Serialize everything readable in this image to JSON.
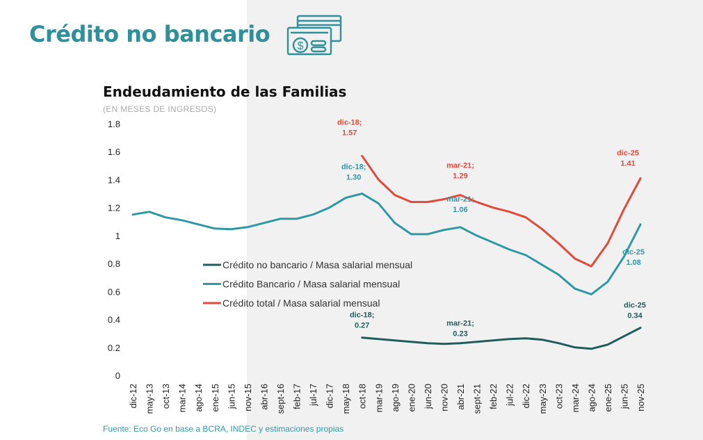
{
  "header": {
    "title": "Crédito no bancario",
    "icon": "credit-card-dollar-icon"
  },
  "source": "Fuente: Eco Go en base a BCRA, INDEC y estimaciones propias",
  "colors": {
    "accent": "#2f8f9a",
    "no_bancario": "#1f5c5e",
    "bancario": "#2e98a4",
    "total": "#e04a3a",
    "background_right": "#f1f1f1"
  },
  "chart_data": {
    "type": "line",
    "title": "Endeudamiento de las Familias",
    "subtitle": "(EN MESES DE INGRESOS)",
    "ylim": [
      0,
      1.8
    ],
    "yticks": [
      "0",
      "0.2",
      "0.4",
      "0.6",
      "0.8",
      "1",
      "1.2",
      "1.4",
      "1.6",
      "1.8"
    ],
    "categories": [
      "dic-12",
      "may-13",
      "oct-13",
      "mar-14",
      "ago-14",
      "ene-15",
      "jun-15",
      "nov-15",
      "abr-16",
      "sept-16",
      "feb-17",
      "jul-17",
      "dic-17",
      "may-18",
      "oct-18",
      "mar-19",
      "ago-19",
      "ene-20",
      "jun-20",
      "nov-20",
      "abr-21",
      "sept-21",
      "feb-22",
      "jul-22",
      "dic-22",
      "may-23",
      "oct-23",
      "mar-24",
      "ago-24",
      "ene-25",
      "jun-25",
      "nov-25"
    ],
    "grid": false,
    "legend_position": "center-left",
    "series": [
      {
        "name": "Crédito no bancario / Masa salarial mensual",
        "color": "#1f5c5e",
        "values": [
          null,
          null,
          null,
          null,
          null,
          null,
          null,
          null,
          null,
          null,
          null,
          null,
          null,
          null,
          0.27,
          0.26,
          0.25,
          0.24,
          0.23,
          0.225,
          0.23,
          0.24,
          0.25,
          0.26,
          0.265,
          0.255,
          0.23,
          0.2,
          0.19,
          0.22,
          0.28,
          0.34
        ]
      },
      {
        "name": "Crédito Bancario / Masa salarial mensual",
        "color": "#2e98a4",
        "values": [
          1.15,
          1.17,
          1.13,
          1.11,
          1.08,
          1.05,
          1.045,
          1.06,
          1.09,
          1.12,
          1.12,
          1.15,
          1.2,
          1.27,
          1.3,
          1.23,
          1.09,
          1.01,
          1.01,
          1.04,
          1.06,
          1.0,
          0.95,
          0.9,
          0.86,
          0.79,
          0.72,
          0.62,
          0.58,
          0.67,
          0.85,
          1.08
        ]
      },
      {
        "name": "Crédito total / Masa salarial mensual",
        "color": "#e04a3a",
        "values": [
          null,
          null,
          null,
          null,
          null,
          null,
          null,
          null,
          null,
          null,
          null,
          null,
          null,
          null,
          1.57,
          1.4,
          1.29,
          1.24,
          1.24,
          1.26,
          1.29,
          1.24,
          1.2,
          1.17,
          1.13,
          1.045,
          0.945,
          0.835,
          0.78,
          0.945,
          1.19,
          1.41
        ]
      }
    ],
    "annotations": [
      {
        "series": 2,
        "at": "oct-18",
        "lines": [
          "dic-18;",
          "1.57"
        ]
      },
      {
        "series": 1,
        "at": "oct-18",
        "lines": [
          "dic-18;",
          "1.30"
        ]
      },
      {
        "series": 2,
        "at": "abr-21",
        "lines": [
          "mar-21;",
          "1.29"
        ]
      },
      {
        "series": 1,
        "at": "abr-21",
        "lines": [
          "mar-21;",
          "1.06"
        ]
      },
      {
        "series": 2,
        "at": "nov-25",
        "lines": [
          "dic-25",
          "1.41"
        ]
      },
      {
        "series": 1,
        "at": "nov-25",
        "lines": [
          "dic-25",
          "1.08"
        ]
      },
      {
        "series": 0,
        "at": "oct-18",
        "lines": [
          "dic-18;",
          "0.27"
        ]
      },
      {
        "series": 0,
        "at": "abr-21",
        "lines": [
          "mar-21;",
          "0.23"
        ]
      },
      {
        "series": 0,
        "at": "nov-25",
        "lines": [
          "dic-25",
          "0.34"
        ]
      }
    ]
  }
}
